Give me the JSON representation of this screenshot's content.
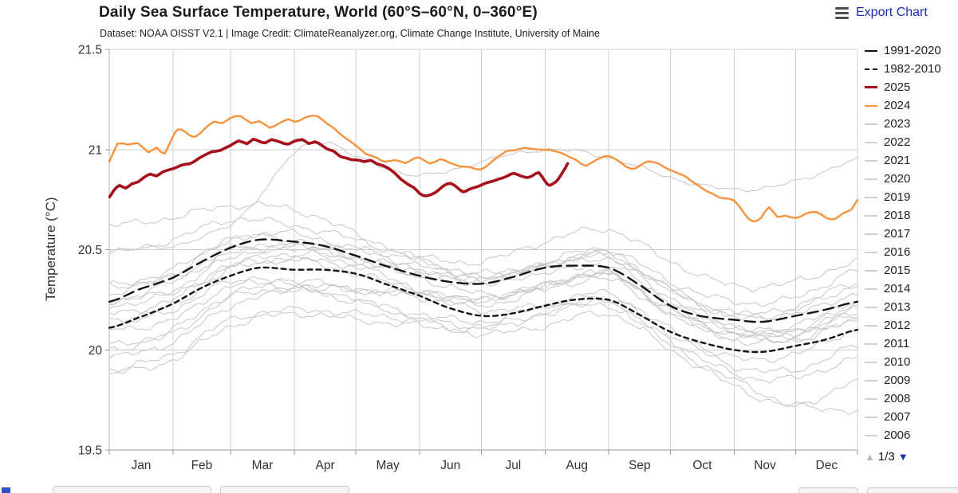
{
  "header": {
    "title": "Daily Sea Surface Temperature, World (60°S–60°N, 0–360°E)",
    "subtitle": "Dataset: NOAA OISST V2.1 | Image Credit: ClimateReanalyzer.org, Climate Change Institute, University of Maine",
    "export_label": "Export Chart"
  },
  "legend": {
    "items": [
      {
        "label": "1991-2020",
        "color": "#141414",
        "style": "mean-solid"
      },
      {
        "label": "1982-2010",
        "color": "#141414",
        "style": "mean-dash"
      },
      {
        "label": "2025",
        "color": "#a6111b",
        "style": "thick"
      },
      {
        "label": "2024",
        "color": "#f5923e",
        "style": "solid"
      },
      {
        "label": "2023",
        "color": "#cfcfcf",
        "style": "thin"
      },
      {
        "label": "2022",
        "color": "#cfcfcf",
        "style": "thin"
      },
      {
        "label": "2021",
        "color": "#cfcfcf",
        "style": "thin"
      },
      {
        "label": "2020",
        "color": "#cfcfcf",
        "style": "thin"
      },
      {
        "label": "2019",
        "color": "#cfcfcf",
        "style": "thin"
      },
      {
        "label": "2018",
        "color": "#cfcfcf",
        "style": "thin"
      },
      {
        "label": "2017",
        "color": "#cfcfcf",
        "style": "thin"
      },
      {
        "label": "2016",
        "color": "#cfcfcf",
        "style": "thin"
      },
      {
        "label": "2015",
        "color": "#cfcfcf",
        "style": "thin"
      },
      {
        "label": "2014",
        "color": "#cfcfcf",
        "style": "thin"
      },
      {
        "label": "2013",
        "color": "#cfcfcf",
        "style": "thin"
      },
      {
        "label": "2012",
        "color": "#cfcfcf",
        "style": "thin"
      },
      {
        "label": "2011",
        "color": "#cfcfcf",
        "style": "thin"
      },
      {
        "label": "2010",
        "color": "#cfcfcf",
        "style": "thin"
      },
      {
        "label": "2009",
        "color": "#cfcfcf",
        "style": "thin"
      },
      {
        "label": "2008",
        "color": "#cfcfcf",
        "style": "thin"
      },
      {
        "label": "2007",
        "color": "#cfcfcf",
        "style": "thin"
      },
      {
        "label": "2006",
        "color": "#cfcfcf",
        "style": "thin"
      }
    ],
    "pagination": {
      "label": "1/3",
      "up_icon": "▲",
      "down_icon": "▼"
    }
  },
  "chart_data": {
    "type": "line",
    "title": "Daily Sea Surface Temperature, World (60°S–60°N, 0–360°E)",
    "ylabel": "Temperature (°C)",
    "xlabel": "",
    "ylim": [
      19.5,
      21.5
    ],
    "yticks": [
      19.5,
      20,
      20.5,
      21,
      21.5
    ],
    "ytick_labels": [
      "19.5",
      "20",
      "20.5",
      "21",
      "21.5"
    ],
    "xtick_labels": [
      "Jan",
      "Feb",
      "Mar",
      "Apr",
      "May",
      "Jun",
      "Jul",
      "Aug",
      "Sep",
      "Oct",
      "Nov",
      "Dec"
    ],
    "x_unit": "day_of_year",
    "grid": true,
    "legend_position": "right",
    "month_boundaries": [
      1,
      32,
      60,
      91,
      121,
      152,
      182,
      213,
      244,
      274,
      305,
      335,
      365
    ],
    "x_monthly": [
      1,
      32,
      60,
      91,
      121,
      152,
      182,
      213,
      244,
      274,
      305,
      335,
      365
    ],
    "series": [
      {
        "name": "1991-2020",
        "role": "climate-mean",
        "color": "#141414",
        "width": 2.4,
        "dash": "13,7",
        "z": 2,
        "wiggle": 0,
        "x": [
          1,
          15,
          32,
          46,
          60,
          74,
          91,
          105,
          121,
          135,
          152,
          166,
          182,
          196,
          213,
          227,
          244,
          258,
          274,
          288,
          305,
          319,
          335,
          349,
          365
        ],
        "y": [
          20.24,
          20.3,
          20.36,
          20.44,
          20.51,
          20.55,
          20.54,
          20.52,
          20.47,
          20.42,
          20.37,
          20.34,
          20.33,
          20.36,
          20.41,
          20.42,
          20.41,
          20.33,
          20.22,
          20.17,
          20.15,
          20.14,
          20.17,
          20.2,
          20.24
        ]
      },
      {
        "name": "1982-2010",
        "role": "climate-mean",
        "color": "#141414",
        "width": 2.4,
        "dash": "6,5",
        "z": 2,
        "wiggle": 0,
        "x": [
          1,
          15,
          32,
          46,
          60,
          74,
          91,
          105,
          121,
          135,
          152,
          166,
          182,
          196,
          213,
          227,
          244,
          258,
          274,
          288,
          305,
          319,
          335,
          349,
          365
        ],
        "y": [
          20.11,
          20.16,
          20.23,
          20.31,
          20.37,
          20.41,
          20.4,
          20.4,
          20.38,
          20.33,
          20.27,
          20.21,
          20.17,
          20.18,
          20.22,
          20.25,
          20.25,
          20.18,
          20.09,
          20.04,
          20.0,
          19.99,
          20.02,
          20.05,
          20.1
        ]
      },
      {
        "name": "2025",
        "color": "#a6111b",
        "width": 3.6,
        "dash": null,
        "z": 4,
        "wiggle": 0.004,
        "x": [
          1,
          3,
          6,
          9,
          12,
          15,
          18,
          21,
          24,
          27,
          32,
          36,
          40,
          44,
          47,
          51,
          55,
          60,
          64,
          68,
          71,
          74,
          77,
          80,
          84,
          88,
          91,
          95,
          98,
          101,
          104,
          107,
          110,
          113,
          116,
          119,
          121,
          125,
          128,
          131,
          134,
          137,
          140,
          143,
          146,
          149,
          152,
          155,
          158,
          161,
          164,
          167,
          170,
          173,
          176,
          179,
          182,
          186,
          189,
          192,
          195,
          198,
          201,
          204,
          207,
          210,
          213,
          215,
          217,
          219,
          221,
          223,
          224
        ],
        "y": [
          20.76,
          20.79,
          20.82,
          20.81,
          20.83,
          20.84,
          20.86,
          20.88,
          20.87,
          20.89,
          20.9,
          20.92,
          20.93,
          20.95,
          20.97,
          20.99,
          21.0,
          21.02,
          21.04,
          21.03,
          21.05,
          21.04,
          21.03,
          21.05,
          21.04,
          21.03,
          21.04,
          21.05,
          21.03,
          21.04,
          21.02,
          21.0,
          20.99,
          20.97,
          20.96,
          20.95,
          20.95,
          20.94,
          20.95,
          20.93,
          20.92,
          20.9,
          20.88,
          20.85,
          20.83,
          20.81,
          20.78,
          20.77,
          20.78,
          20.8,
          20.82,
          20.83,
          20.81,
          20.79,
          20.8,
          20.81,
          20.82,
          20.84,
          20.85,
          20.86,
          20.87,
          20.88,
          20.87,
          20.86,
          20.87,
          20.88,
          20.84,
          20.82,
          20.83,
          20.85,
          20.88,
          20.91,
          20.93
        ]
      },
      {
        "name": "2024",
        "color": "#f5923e",
        "width": 2.4,
        "dash": null,
        "z": 3,
        "wiggle": 0.004,
        "x": [
          1,
          5,
          10,
          15,
          20,
          24,
          28,
          33,
          36,
          40,
          43,
          47,
          52,
          56,
          60,
          65,
          70,
          74,
          79,
          84,
          88,
          91,
          96,
          100,
          103,
          107,
          111,
          115,
          118,
          121,
          126,
          131,
          135,
          140,
          145,
          149,
          152,
          157,
          162,
          166,
          171,
          176,
          182,
          186,
          190,
          194,
          198,
          203,
          208,
          213,
          218,
          223,
          228,
          233,
          238,
          244,
          250,
          255,
          259,
          263,
          268,
          274,
          280,
          286,
          292,
          298,
          305,
          310,
          314,
          318,
          322,
          326,
          330,
          335,
          340,
          345,
          350,
          354,
          358,
          362,
          365
        ],
        "y": [
          20.94,
          21.03,
          21.02,
          21.03,
          20.99,
          21.01,
          20.98,
          21.09,
          21.1,
          21.07,
          21.06,
          21.1,
          21.14,
          21.13,
          21.16,
          21.17,
          21.13,
          21.14,
          21.11,
          21.13,
          21.15,
          21.14,
          21.16,
          21.17,
          21.16,
          21.13,
          21.1,
          21.06,
          21.04,
          21.02,
          20.98,
          20.96,
          20.94,
          20.95,
          20.93,
          20.95,
          20.96,
          20.93,
          20.95,
          20.94,
          20.92,
          20.91,
          20.9,
          20.93,
          20.96,
          20.99,
          21.0,
          21.01,
          21.0,
          21.0,
          20.99,
          20.97,
          20.95,
          20.92,
          20.95,
          20.97,
          20.93,
          20.9,
          20.92,
          20.94,
          20.93,
          20.9,
          20.87,
          20.83,
          20.79,
          20.76,
          20.75,
          20.68,
          20.64,
          20.66,
          20.71,
          20.66,
          20.67,
          20.66,
          20.68,
          20.69,
          20.66,
          20.65,
          20.68,
          20.7,
          20.75
        ]
      },
      {
        "name": "2023",
        "color": "#c6c6c6",
        "width": 1,
        "dash": null,
        "z": 1,
        "wiggle": 0.012,
        "x": [
          1,
          32,
          60,
          75,
          91,
          106,
          121,
          152,
          182,
          213,
          244,
          274,
          305,
          335,
          365
        ],
        "y": [
          20.5,
          20.52,
          20.62,
          20.78,
          20.98,
          21.04,
          20.96,
          20.87,
          20.94,
          21.0,
          20.96,
          20.86,
          20.8,
          20.84,
          20.95
        ]
      },
      {
        "name": "2022",
        "color": "#c6c6c6",
        "width": 1,
        "dash": null,
        "z": 1,
        "wiggle": 0.02,
        "y": [
          20.32,
          20.36,
          20.5,
          20.52,
          20.46,
          20.4,
          20.34,
          20.42,
          20.46,
          20.3,
          20.16,
          20.2,
          20.32
        ]
      },
      {
        "name": "2021",
        "color": "#c6c6c6",
        "width": 1,
        "dash": null,
        "z": 1,
        "wiggle": 0.02,
        "y": [
          20.18,
          20.25,
          20.42,
          20.48,
          20.45,
          20.4,
          20.35,
          20.42,
          20.48,
          20.3,
          20.18,
          20.22,
          20.34
        ]
      },
      {
        "name": "2020",
        "color": "#c6c6c6",
        "width": 1,
        "dash": null,
        "z": 1,
        "wiggle": 0.02,
        "y": [
          20.48,
          20.55,
          20.65,
          20.62,
          20.55,
          20.45,
          20.38,
          20.42,
          20.45,
          20.26,
          20.12,
          20.1,
          20.2
        ]
      },
      {
        "name": "2019",
        "color": "#c6c6c6",
        "width": 1,
        "dash": null,
        "z": 1,
        "wiggle": 0.02,
        "y": [
          20.28,
          20.38,
          20.55,
          20.58,
          20.5,
          20.42,
          20.36,
          20.44,
          20.5,
          20.34,
          20.24,
          20.26,
          20.4
        ]
      },
      {
        "name": "2018",
        "color": "#c6c6c6",
        "width": 1,
        "dash": null,
        "z": 1,
        "wiggle": 0.02,
        "y": [
          20.22,
          20.28,
          20.42,
          20.45,
          20.38,
          20.3,
          20.25,
          20.32,
          20.38,
          20.22,
          20.1,
          20.12,
          20.25
        ]
      },
      {
        "name": "2017",
        "color": "#c6c6c6",
        "width": 1,
        "dash": null,
        "z": 1,
        "wiggle": 0.02,
        "y": [
          20.32,
          20.4,
          20.55,
          20.55,
          20.46,
          20.36,
          20.28,
          20.32,
          20.38,
          20.2,
          20.08,
          20.05,
          20.15
        ]
      },
      {
        "name": "2016",
        "color": "#c6c6c6",
        "width": 1,
        "dash": null,
        "z": 1,
        "wiggle": 0.02,
        "y": [
          20.62,
          20.66,
          20.72,
          20.7,
          20.58,
          20.45,
          20.36,
          20.38,
          20.42,
          20.24,
          20.1,
          20.08,
          20.18
        ]
      },
      {
        "name": "2015",
        "color": "#c6c6c6",
        "width": 1,
        "dash": null,
        "z": 1,
        "wiggle": 0.02,
        "y": [
          20.24,
          20.3,
          20.46,
          20.52,
          20.5,
          20.46,
          20.44,
          20.54,
          20.6,
          20.44,
          20.32,
          20.34,
          20.44
        ]
      },
      {
        "name": "2014",
        "color": "#c6c6c6",
        "width": 1,
        "dash": null,
        "z": 1,
        "wiggle": 0.02,
        "y": [
          20.15,
          20.22,
          20.4,
          20.45,
          20.42,
          20.38,
          20.33,
          20.42,
          20.48,
          20.3,
          20.18,
          20.18,
          20.28
        ]
      },
      {
        "name": "2013",
        "color": "#c6c6c6",
        "width": 1,
        "dash": null,
        "z": 1,
        "wiggle": 0.02,
        "y": [
          20.1,
          20.15,
          20.32,
          20.35,
          20.3,
          20.26,
          20.22,
          20.3,
          20.35,
          20.18,
          20.06,
          20.08,
          20.18
        ]
      },
      {
        "name": "2012",
        "color": "#c6c6c6",
        "width": 1,
        "dash": null,
        "z": 1,
        "wiggle": 0.02,
        "y": [
          19.96,
          20.04,
          20.22,
          20.3,
          20.3,
          20.28,
          20.25,
          20.32,
          20.38,
          20.18,
          20.05,
          20.05,
          20.15
        ]
      },
      {
        "name": "2011",
        "color": "#c6c6c6",
        "width": 1,
        "dash": null,
        "z": 1,
        "wiggle": 0.02,
        "y": [
          19.9,
          19.98,
          20.15,
          20.2,
          20.18,
          20.15,
          20.12,
          20.18,
          20.22,
          20.05,
          19.88,
          19.86,
          19.96
        ]
      },
      {
        "name": "2010",
        "color": "#c6c6c6",
        "width": 1,
        "dash": null,
        "z": 1,
        "wiggle": 0.02,
        "y": [
          20.24,
          20.34,
          20.48,
          20.5,
          20.42,
          20.3,
          20.2,
          20.22,
          20.24,
          20.02,
          19.85,
          19.72,
          19.7
        ]
      },
      {
        "name": "2009",
        "color": "#c6c6c6",
        "width": 1,
        "dash": null,
        "z": 1,
        "wiggle": 0.02,
        "y": [
          20.02,
          20.1,
          20.28,
          20.32,
          20.3,
          20.28,
          20.25,
          20.32,
          20.38,
          20.2,
          20.08,
          20.1,
          20.22
        ]
      },
      {
        "name": "2008",
        "color": "#c6c6c6",
        "width": 1,
        "dash": null,
        "z": 1,
        "wiggle": 0.02,
        "y": [
          19.88,
          19.95,
          20.12,
          20.18,
          20.15,
          20.12,
          20.1,
          20.18,
          20.25,
          20.08,
          19.92,
          19.9,
          20.02
        ]
      },
      {
        "name": "2007",
        "color": "#c6c6c6",
        "width": 1,
        "dash": null,
        "z": 1,
        "wiggle": 0.02,
        "y": [
          20.12,
          20.2,
          20.34,
          20.32,
          20.25,
          20.15,
          20.08,
          20.12,
          20.18,
          20.0,
          19.82,
          19.72,
          19.85
        ]
      },
      {
        "name": "2006",
        "color": "#c6c6c6",
        "width": 1,
        "dash": null,
        "z": 1,
        "wiggle": 0.02,
        "y": [
          20.0,
          20.08,
          20.26,
          20.3,
          20.24,
          20.18,
          20.14,
          20.22,
          20.28,
          20.1,
          19.96,
          19.98,
          20.1
        ]
      }
    ]
  },
  "colors": {
    "grid": "#cfcfcf",
    "axis": "#999999",
    "tick_text": "#333333",
    "export_blue": "#1b2db0",
    "pager_up_gray": "#b9b9b9"
  }
}
